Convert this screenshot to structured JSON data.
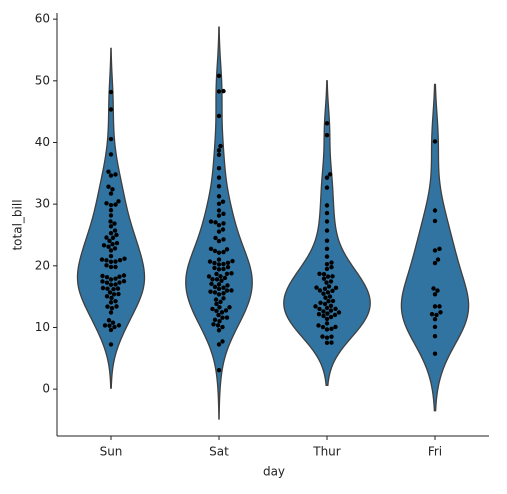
{
  "chart_data": {
    "type": "violin",
    "x_label": "day",
    "y_label": "total_bill",
    "categories": [
      "Sun",
      "Sat",
      "Thur",
      "Fri"
    ],
    "values": [
      [
        7.25,
        9.6,
        10.07,
        10.29,
        10.33,
        10.34,
        10.77,
        11.17,
        12.43,
        13.13,
        13.39,
        13.42,
        14.07,
        14.26,
        14.78,
        15.06,
        15.38,
        15.42,
        15.69,
        16.21,
        16.29,
        16.31,
        16.4,
        16.93,
        16.97,
        17.26,
        17.29,
        17.46,
        17.51,
        17.78,
        17.92,
        18.15,
        18.24,
        18.35,
        18.43,
        19.81,
        19.82,
        20.08,
        20.65,
        20.69,
        20.9,
        20.92,
        21.01,
        21.16,
        21.58,
        22.49,
        22.82,
        23.1,
        23.33,
        23.5,
        23.68,
        24.06,
        24.55,
        24.59,
        25.0,
        25.29,
        25.71,
        26.41,
        26.86,
        27.2,
        28.17,
        29.03,
        29.85,
        29.93,
        30.14,
        30.46,
        31.71,
        32.4,
        32.83,
        34.63,
        34.81,
        35.26,
        38.07,
        40.55,
        45.35,
        48.17
      ],
      [
        3.07,
        7.25,
        7.74,
        9.55,
        10.07,
        10.34,
        10.51,
        11.02,
        11.24,
        11.59,
        11.61,
        12.02,
        12.46,
        12.69,
        12.76,
        13.0,
        13.27,
        13.28,
        13.81,
        14.15,
        14.52,
        14.73,
        15.36,
        15.53,
        15.69,
        15.81,
        15.98,
        16.0,
        16.27,
        16.45,
        16.58,
        16.82,
        16.99,
        17.07,
        17.59,
        17.81,
        17.82,
        18.04,
        18.28,
        18.29,
        18.69,
        18.71,
        18.78,
        19.44,
        19.49,
        19.65,
        19.77,
        20.23,
        20.29,
        20.45,
        20.49,
        20.69,
        20.76,
        21.01,
        22.12,
        22.23,
        22.42,
        22.67,
        22.75,
        24.01,
        24.27,
        24.52,
        25.56,
        25.89,
        26.59,
        26.88,
        27.05,
        27.18,
        28.15,
        28.44,
        28.97,
        30.06,
        30.4,
        31.27,
        32.9,
        34.3,
        35.83,
        38.01,
        38.73,
        39.42,
        44.3,
        48.27,
        48.33,
        50.81
      ],
      [
        7.51,
        7.56,
        8.35,
        8.51,
        8.52,
        9.68,
        9.78,
        10.07,
        10.09,
        10.33,
        10.65,
        11.38,
        11.69,
        11.87,
        12.03,
        12.16,
        12.26,
        12.43,
        12.6,
        12.74,
        13.0,
        13.03,
        13.16,
        13.42,
        13.51,
        13.81,
        14.0,
        14.26,
        14.31,
        14.83,
        15.01,
        15.48,
        15.69,
        15.95,
        16.0,
        16.27,
        16.43,
        16.47,
        16.66,
        17.29,
        17.47,
        17.92,
        18.26,
        18.29,
        18.64,
        18.71,
        19.49,
        19.77,
        20.27,
        20.53,
        21.5,
        22.76,
        24.08,
        25.71,
        27.2,
        28.55,
        29.8,
        32.68,
        34.3,
        34.83,
        41.19,
        43.11
      ],
      [
        5.75,
        8.58,
        10.09,
        11.35,
        12.03,
        12.16,
        12.46,
        13.42,
        13.42,
        15.38,
        15.98,
        16.32,
        20.45,
        21.01,
        22.49,
        22.75,
        27.28,
        28.97,
        40.17
      ]
    ],
    "color": "#3274a1",
    "edge_color": "#3f3f3f",
    "point_color": "#000000",
    "ylim": [
      -7.6,
      61
    ],
    "yticks": [
      0,
      10,
      20,
      30,
      40,
      50,
      60
    ]
  }
}
